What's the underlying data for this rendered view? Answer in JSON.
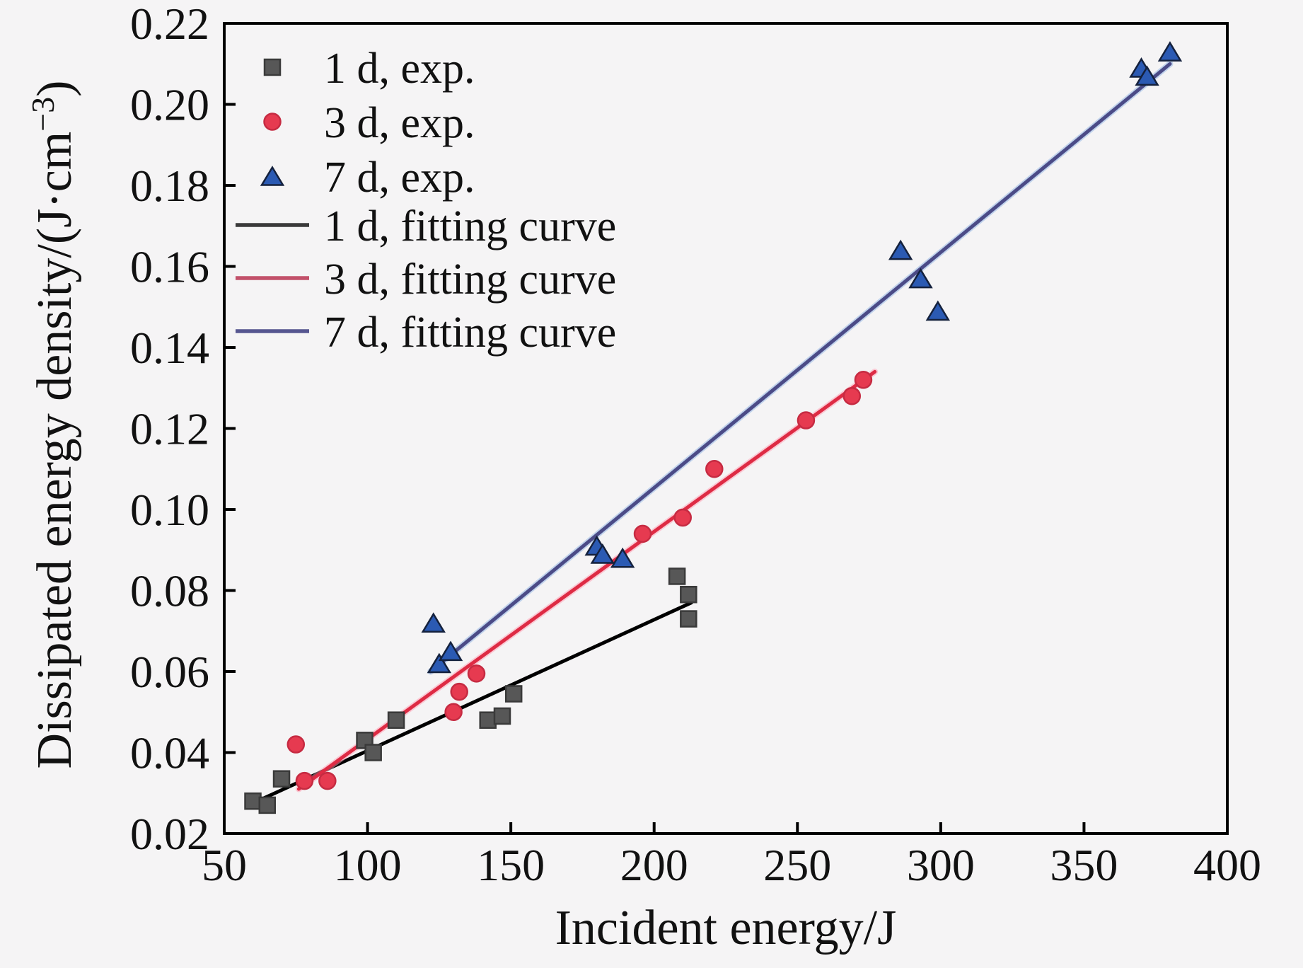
{
  "figure": {
    "background": "#f5f4f5",
    "axis_color": "#000000"
  },
  "chart_data": {
    "type": "scatter",
    "title": "",
    "xlabel": "Incident energy/J",
    "ylabel": "Dissipated energy density/(J·cm⁻³)",
    "ylabel_parts": {
      "base": "Dissipated energy density/(J·cm",
      "sup": "−3",
      "tail": ")"
    },
    "xlim": [
      50,
      400
    ],
    "ylim": [
      0.02,
      0.22
    ],
    "xticks": [
      50,
      100,
      150,
      200,
      250,
      300,
      350,
      400
    ],
    "xtick_labels": [
      "50",
      "100",
      "150",
      "200",
      "250",
      "300",
      "350",
      "400"
    ],
    "yticks": [
      0.02,
      0.04,
      0.06,
      0.08,
      0.1,
      0.12,
      0.14,
      0.16,
      0.18,
      0.2,
      0.22
    ],
    "ytick_labels": [
      "0.02",
      "0.04",
      "0.06",
      "0.08",
      "0.10",
      "0.12",
      "0.14",
      "0.16",
      "0.18",
      "0.20",
      "0.22"
    ],
    "grid": false,
    "legend_position": "top-left",
    "series": [
      {
        "name": "1 d, exp.",
        "marker": "square",
        "color": "#575757",
        "edge": "#3a3a3a",
        "points": [
          [
            60,
            0.028
          ],
          [
            65,
            0.027
          ],
          [
            70,
            0.0335
          ],
          [
            99,
            0.043
          ],
          [
            102,
            0.04
          ],
          [
            110,
            0.048
          ],
          [
            142,
            0.048
          ],
          [
            147,
            0.049
          ],
          [
            151,
            0.0545
          ],
          [
            208,
            0.0835
          ],
          [
            212,
            0.079
          ],
          [
            212,
            0.073
          ]
        ]
      },
      {
        "name": "3 d, exp.",
        "marker": "circle",
        "color": "#e63a50",
        "edge": "#c62b42",
        "points": [
          [
            75,
            0.042
          ],
          [
            78,
            0.033
          ],
          [
            86,
            0.033
          ],
          [
            130,
            0.05
          ],
          [
            132,
            0.055
          ],
          [
            138,
            0.0595
          ],
          [
            196,
            0.094
          ],
          [
            210,
            0.098
          ],
          [
            221,
            0.11
          ],
          [
            253,
            0.122
          ],
          [
            269,
            0.128
          ],
          [
            273,
            0.132
          ]
        ]
      },
      {
        "name": "7 d, exp.",
        "marker": "triangle",
        "color": "#2b5ab3",
        "edge": "#14213d",
        "points": [
          [
            123,
            0.072
          ],
          [
            125,
            0.062
          ],
          [
            129,
            0.065
          ],
          [
            180,
            0.091
          ],
          [
            182,
            0.089
          ],
          [
            189,
            0.088
          ],
          [
            286,
            0.164
          ],
          [
            293,
            0.157
          ],
          [
            299,
            0.149
          ],
          [
            370,
            0.209
          ],
          [
            372,
            0.207
          ],
          [
            380,
            0.213
          ]
        ]
      }
    ],
    "fits": [
      {
        "name": "1 d, fitting curve",
        "color": "#000000",
        "halo": null,
        "x": [
          60,
          213
        ],
        "y": [
          0.0275,
          0.077
        ]
      },
      {
        "name": "3 d, fitting curve",
        "color": "#de2b44",
        "halo": "#ff9fb4",
        "x": [
          76,
          277
        ],
        "y": [
          0.031,
          0.134
        ]
      },
      {
        "name": "7 d, fitting curve",
        "color": "#4b4b87",
        "halo": "#8fb4e4",
        "x": [
          122,
          380
        ],
        "y": [
          0.06,
          0.21
        ]
      }
    ]
  },
  "legend": {
    "entries": [
      {
        "label": "1 d, exp.",
        "swatch": "square",
        "color": "#575757",
        "edge": "#3a3a3a"
      },
      {
        "label": "3 d, exp.",
        "swatch": "circle",
        "color": "#e63a50",
        "edge": "#c62b42"
      },
      {
        "label": "7 d, exp.",
        "swatch": "triangle",
        "color": "#2b5ab3",
        "edge": "#14213d"
      },
      {
        "label": "1 d, fitting curve",
        "swatch": "line",
        "color": "#3a3a3a",
        "edge": "#3a3a3a"
      },
      {
        "label": "3 d, fitting curve",
        "swatch": "line",
        "color": "#c2506a",
        "edge": "#c2506a"
      },
      {
        "label": "7 d, fitting curve",
        "swatch": "line",
        "color": "#565690",
        "edge": "#565690"
      }
    ]
  }
}
